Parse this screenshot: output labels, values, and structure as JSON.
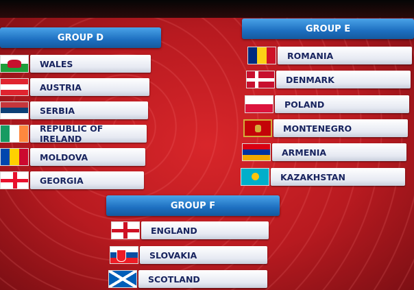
{
  "groups": {
    "d": {
      "title": "GROUP D",
      "teams": [
        "WALES",
        "AUSTRIA",
        "SERBIA",
        "REPUBLIC OF IRELAND",
        "MOLDOVA",
        "GEORGIA"
      ]
    },
    "e": {
      "title": "GROUP E",
      "teams": [
        "ROMANIA",
        "DENMARK",
        "POLAND",
        "MONTENEGRO",
        "ARMENIA",
        "KAZAKHSTAN"
      ]
    },
    "f": {
      "title": "GROUP F",
      "teams": [
        "ENGLAND",
        "SLOVAKIA",
        "SCOTLAND"
      ]
    }
  },
  "colors": {
    "background": "#c41e24",
    "header": "#1d6fc0",
    "team_text": "#17235e"
  }
}
